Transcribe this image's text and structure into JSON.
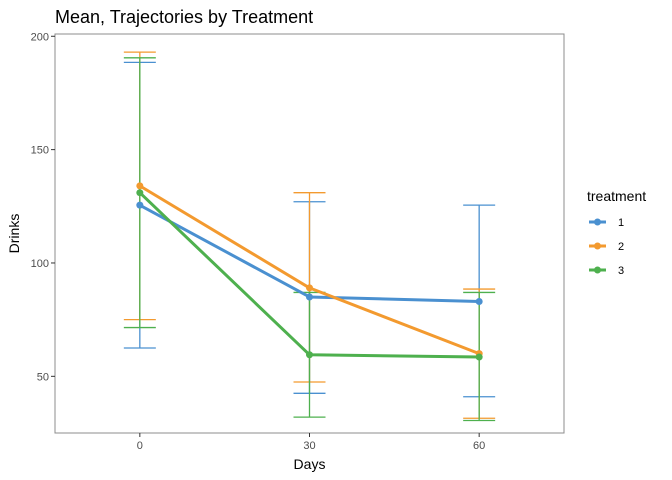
{
  "chart_data": {
    "type": "line",
    "title": "Mean, Trajectories by Treatment",
    "xlabel": "Days",
    "ylabel": "Drinks",
    "x": [
      0,
      30,
      60
    ],
    "x_ticks": [
      "0",
      "30",
      "60"
    ],
    "xlim": [
      -15,
      75
    ],
    "y_ticks": [
      "50",
      "100",
      "150",
      "200"
    ],
    "ylim": [
      25,
      201
    ],
    "grid": false,
    "legend": {
      "title": "treatment",
      "placement": "right"
    },
    "series": [
      {
        "name": "1",
        "color": "#4A90D0",
        "values": [
          125.5,
          85,
          83
        ],
        "lower": [
          62.5,
          42.5,
          41
        ],
        "upper": [
          188.5,
          127,
          125.5
        ]
      },
      {
        "name": "2",
        "color": "#F39A2F",
        "values": [
          134,
          89,
          60
        ],
        "lower": [
          75,
          47.5,
          31.5
        ],
        "upper": [
          193,
          131,
          88.5
        ]
      },
      {
        "name": "3",
        "color": "#4EB04E",
        "values": [
          131,
          59.5,
          58.5
        ],
        "lower": [
          71.5,
          32,
          30.5
        ],
        "upper": [
          190.5,
          87,
          87
        ]
      }
    ]
  }
}
